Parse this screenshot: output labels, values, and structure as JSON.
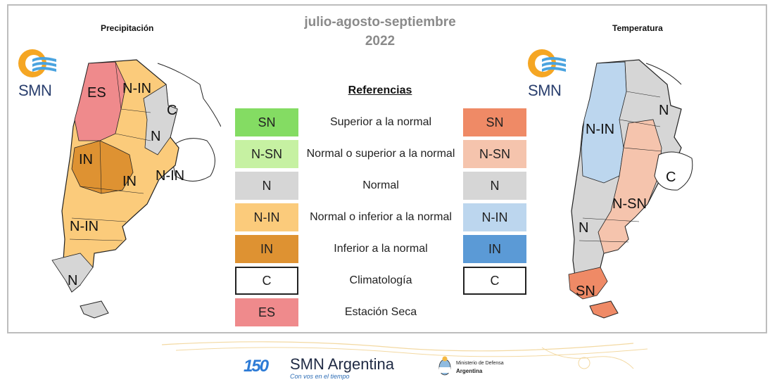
{
  "header": {
    "period": "julio-agosto-septiembre",
    "year": "2022"
  },
  "maps": {
    "precip": {
      "title": "Precipitación",
      "labels": {
        "es": "ES",
        "nin_north": "N-IN",
        "c": "C",
        "n_east": "N",
        "in_west": "IN",
        "in_center": "IN",
        "nin_east": "N-IN",
        "nin_south": "N-IN",
        "n_south": "N"
      }
    },
    "temp": {
      "title": "Temperatura",
      "labels": {
        "n_ne": "N",
        "nin": "N-IN",
        "c": "C",
        "nsn": "N-SN",
        "n_w": "N",
        "sn": "SN"
      }
    }
  },
  "logo": {
    "smn_text": "SMN"
  },
  "references": {
    "title": "Referencias",
    "rows": [
      {
        "left": "SN",
        "desc": "Superior a la normal",
        "right": "SN",
        "left_color": "#84dc63",
        "right_color": "#ef8a66"
      },
      {
        "left": "N-SN",
        "desc": "Normal o superior a la normal",
        "right": "N-SN",
        "left_color": "#c6f1a2",
        "right_color": "#f5c4ad"
      },
      {
        "left": "N",
        "desc": "Normal",
        "right": "N",
        "left_color": "#d6d6d6",
        "right_color": "#d6d6d6"
      },
      {
        "left": "N-IN",
        "desc": "Normal o inferior a la normal",
        "right": "N-IN",
        "left_color": "#fbcb7b",
        "right_color": "#bcd6ee"
      },
      {
        "left": "IN",
        "desc": "Inferior a la normal",
        "right": "IN",
        "left_color": "#de9232",
        "right_color": "#5b9ad6"
      },
      {
        "left": "C",
        "desc": "Climatología",
        "right": "C",
        "left_color": "#ffffff",
        "right_color": "#ffffff"
      },
      {
        "left": "ES",
        "desc": "Estación Seca",
        "left_color": "#ef8a8c"
      }
    ]
  },
  "footer": {
    "badge": "150",
    "brand": "SMN Argentina",
    "tagline": "Con vos en el tiempo",
    "ministry_line1": "Ministerio de Defensa",
    "ministry_line2": "Argentina"
  }
}
